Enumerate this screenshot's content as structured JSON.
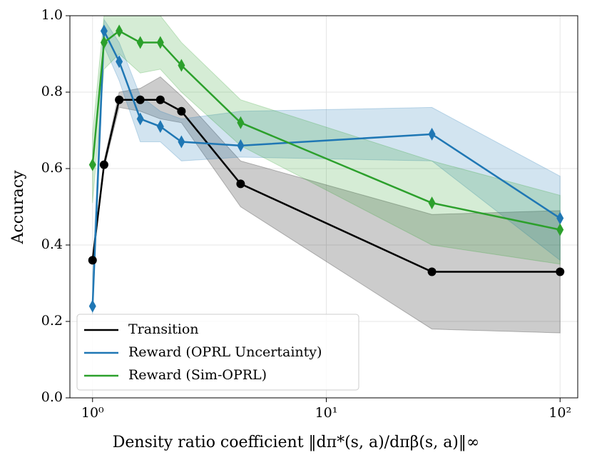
{
  "chart_data": {
    "type": "line",
    "xlabel": "Density ratio coefficient ‖dπ*(s, a)/dπβ(s, a)‖∞",
    "ylabel": "Accuracy",
    "xscale": "log",
    "grid": true,
    "legend": "lower left",
    "x": [
      1.0,
      1.12,
      1.3,
      1.6,
      1.95,
      2.4,
      4.3,
      28.3,
      100
    ],
    "series": [
      {
        "name": "Transition",
        "color": "#000000",
        "marker": "circle",
        "values": [
          0.36,
          0.61,
          0.78,
          0.78,
          0.78,
          0.75,
          0.56,
          0.33,
          0.33
        ],
        "upper": [
          0.37,
          0.62,
          0.8,
          0.81,
          0.84,
          0.79,
          0.62,
          0.48,
          0.49
        ],
        "lower": [
          0.35,
          0.6,
          0.76,
          0.75,
          0.73,
          0.72,
          0.5,
          0.18,
          0.17
        ]
      },
      {
        "name": "Reward (OPRL Uncertainty)",
        "color": "#1f77b4",
        "marker": "diamond",
        "values": [
          0.24,
          0.96,
          0.88,
          0.73,
          0.71,
          0.67,
          0.66,
          0.69,
          0.47
        ],
        "upper": [
          0.32,
          0.99,
          0.93,
          0.79,
          0.75,
          0.73,
          0.75,
          0.76,
          0.58
        ],
        "lower": [
          0.22,
          0.92,
          0.83,
          0.67,
          0.67,
          0.62,
          0.63,
          0.62,
          0.36
        ]
      },
      {
        "name": "Reward (Sim-OPRL)",
        "color": "#2ca02c",
        "marker": "diamond",
        "values": [
          0.61,
          0.93,
          0.96,
          0.93,
          0.93,
          0.87,
          0.72,
          0.51,
          0.44
        ],
        "upper": [
          0.69,
          1.0,
          1.02,
          1.02,
          1.0,
          0.93,
          0.78,
          0.62,
          0.53
        ],
        "lower": [
          0.51,
          0.86,
          0.9,
          0.85,
          0.86,
          0.8,
          0.66,
          0.4,
          0.35
        ]
      }
    ],
    "xlim": [
      0.8,
      119
    ],
    "xticks": [
      {
        "value": 1,
        "label": "10⁰"
      },
      {
        "value": 10,
        "label": "10¹"
      },
      {
        "value": 100,
        "label": "10²"
      }
    ],
    "ylim": [
      0,
      1
    ],
    "yticks": [
      {
        "value": 0,
        "label": "0.0"
      },
      0.2,
      0.4,
      0.6,
      0.8,
      {
        "value": 1,
        "label": "1.0"
      }
    ]
  }
}
